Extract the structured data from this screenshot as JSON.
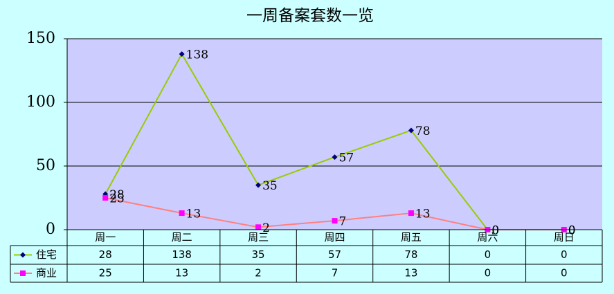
{
  "chart_data": {
    "type": "line",
    "title": "一周备案套数一览",
    "categories": [
      "周一",
      "周二",
      "周三",
      "周四",
      "周五",
      "周六",
      "周日"
    ],
    "series": [
      {
        "name": "住宅",
        "color": "#000080",
        "line_color": "#99cc00",
        "marker": "diamond",
        "values": [
          28,
          138,
          35,
          57,
          78,
          0,
          0
        ]
      },
      {
        "name": "商业",
        "color": "#ff00ff",
        "line_color": "#ff8080",
        "marker": "square",
        "values": [
          25,
          13,
          2,
          7,
          13,
          0,
          0
        ]
      }
    ],
    "ylim": [
      0,
      150
    ],
    "yticks": [
      0,
      50,
      100,
      150
    ],
    "grid": true,
    "data_table": true
  }
}
